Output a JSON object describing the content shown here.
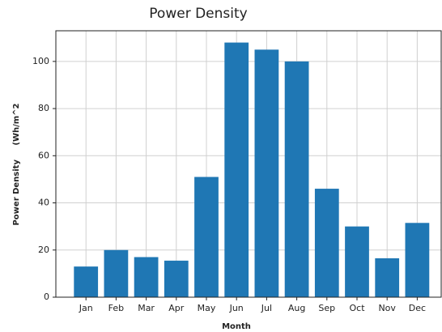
{
  "chart_data": {
    "type": "bar",
    "title": "Power Density",
    "x_label": "Month",
    "y_label": "Power Density     (Wh/m^2",
    "categories": [
      "Jan",
      "Feb",
      "Mar",
      "Apr",
      "May",
      "Jun",
      "Jul",
      "Aug",
      "Sep",
      "Oct",
      "Nov",
      "Dec"
    ],
    "values": [
      13,
      20,
      17,
      15.5,
      51,
      108,
      105,
      100,
      46,
      30,
      16.5,
      31.5
    ],
    "color": "#1f77b4",
    "ylim": [
      0,
      113
    ],
    "yticks": [
      0,
      20,
      40,
      60,
      80,
      100
    ],
    "grid": true
  }
}
